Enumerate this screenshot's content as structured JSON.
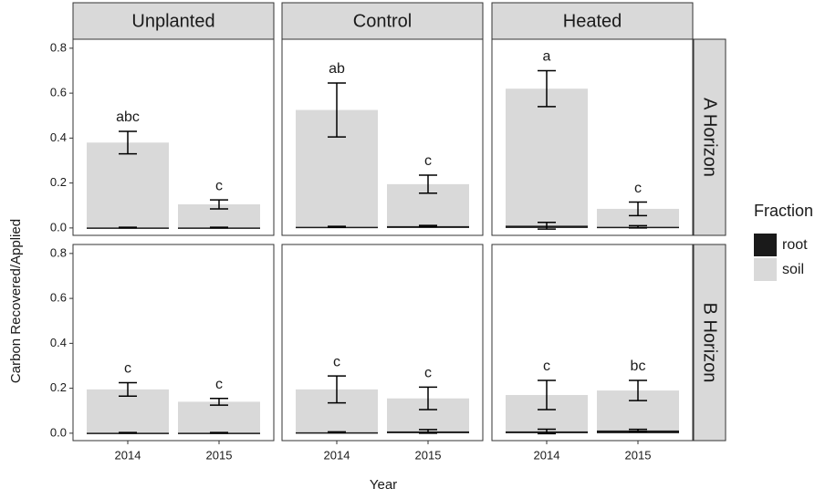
{
  "chart_data": {
    "type": "bar",
    "y_label": "Carbon Recovered/Applied",
    "x_label": "Year",
    "columns": [
      "Unplanted",
      "Control",
      "Heated"
    ],
    "rows": [
      "A Horizon",
      "B Horizon"
    ],
    "categories": [
      "2014",
      "2015"
    ],
    "legend_title": "Fraction",
    "series": [
      {
        "name": "root",
        "color": "#1a1a1a"
      },
      {
        "name": "soil",
        "color": "#d9d9d9"
      }
    ],
    "ylim": [
      -0.033,
      0.84
    ],
    "yticks": [
      {
        "value": 0,
        "label": "0.0"
      },
      0.2,
      0.4,
      0.6,
      0.8
    ],
    "panels": [
      [
        {
          "root": [
            0.002,
            0.002
          ],
          "root_error": [
            0.001,
            0.001
          ],
          "soil": [
            0.38,
            0.105
          ],
          "soil_error": [
            0.05,
            0.02
          ],
          "labels": [
            "abc",
            "c"
          ]
        },
        {
          "root": [
            0.005,
            0.008
          ],
          "root_error": [
            0.002,
            0.003
          ],
          "soil": [
            0.525,
            0.195
          ],
          "soil_error": [
            0.12,
            0.04
          ],
          "labels": [
            "ab",
            "c"
          ]
        },
        {
          "root": [
            0.01,
            0.005
          ],
          "root_error": [
            0.015,
            0.005
          ],
          "soil": [
            0.62,
            0.085
          ],
          "soil_error": [
            0.08,
            0.03
          ],
          "labels": [
            "a",
            "c"
          ]
        }
      ],
      [
        {
          "root": [
            0.002,
            0.002
          ],
          "root_error": [
            0.001,
            0.001
          ],
          "soil": [
            0.195,
            0.14
          ],
          "soil_error": [
            0.03,
            0.015
          ],
          "labels": [
            "c",
            "c"
          ]
        },
        {
          "root": [
            0.004,
            0.008
          ],
          "root_error": [
            0.002,
            0.008
          ],
          "soil": [
            0.195,
            0.155
          ],
          "soil_error": [
            0.06,
            0.05
          ],
          "labels": [
            "c",
            "c"
          ]
        },
        {
          "root": [
            0.008,
            0.012
          ],
          "root_error": [
            0.01,
            0.005
          ],
          "soil": [
            0.17,
            0.19
          ],
          "soil_error": [
            0.065,
            0.045
          ],
          "labels": [
            "c",
            "bc"
          ]
        }
      ]
    ]
  }
}
